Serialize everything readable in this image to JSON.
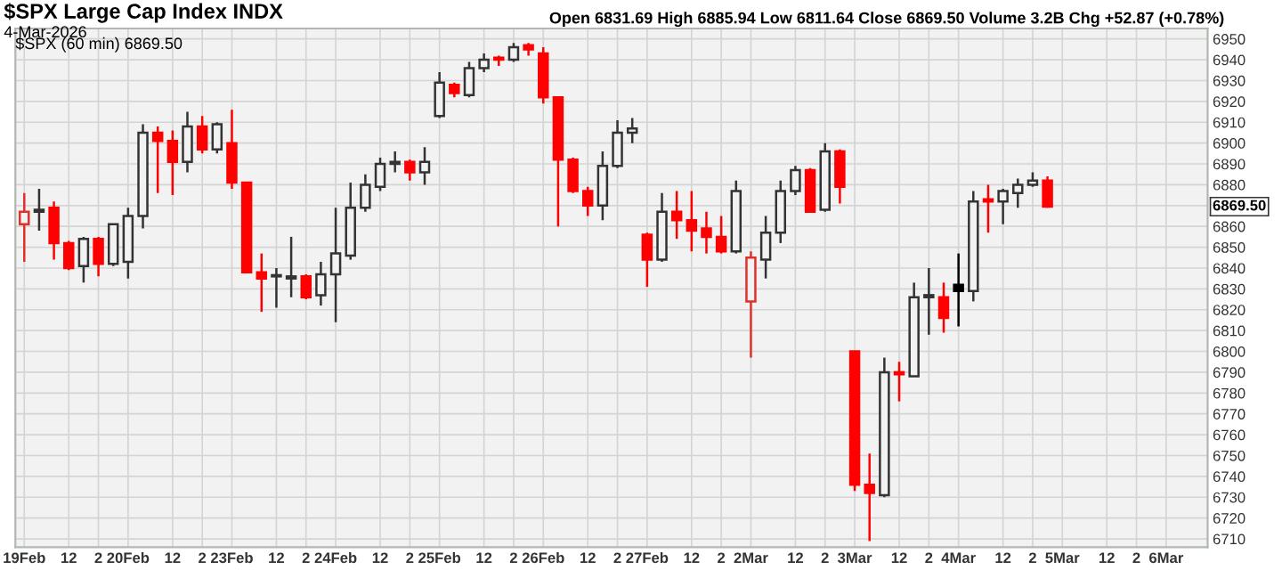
{
  "chart_data": {
    "type": "candlestick",
    "title": "$SPX Large Cap Index INDX",
    "subtitle": "4-Mar-2026",
    "annotations": [
      "Open 6831.69 High 6885.94 Low 6811.64 Close 6869.50 Volume 3.2B Chg +52.87 (+0.78%)",
      "$SPX (60 min) 6869.50",
      "6869.50"
    ],
    "categories": [
      "19Feb",
      null,
      null,
      "12",
      null,
      "2",
      null,
      "20Feb",
      null,
      null,
      "12",
      null,
      "2",
      null,
      "23Feb",
      null,
      null,
      "12",
      null,
      "2",
      null,
      "24Feb",
      null,
      null,
      "12",
      null,
      "2",
      null,
      "25Feb",
      null,
      null,
      "12",
      null,
      "2",
      null,
      "26Feb",
      null,
      null,
      "12",
      null,
      "2",
      null,
      "27Feb",
      null,
      null,
      "12",
      null,
      "2",
      null,
      "2Mar",
      null,
      null,
      "12",
      null,
      "2",
      null,
      "3Mar",
      null,
      null,
      "12",
      null,
      "2",
      null,
      "4Mar",
      null,
      null,
      "12",
      null,
      "2",
      null,
      "5Mar",
      null,
      null,
      "12",
      null,
      "2",
      null,
      "6Mar"
    ],
    "ohlc": [
      [
        6861,
        6876,
        6843,
        6867
      ],
      [
        6868,
        6878,
        6858,
        6867
      ],
      [
        6869,
        6872,
        6844,
        6852
      ],
      [
        6852,
        6853,
        6839,
        6840
      ],
      [
        6841,
        6855,
        6833,
        6854
      ],
      [
        6854,
        6855,
        6836,
        6842
      ],
      [
        6842,
        6861,
        6841,
        6861
      ],
      [
        6843,
        6869,
        6835,
        6865
      ],
      [
        6865,
        6909,
        6859,
        6905
      ],
      [
        6905,
        6908,
        6876,
        6901
      ],
      [
        6901,
        6906,
        6875,
        6891
      ],
      [
        6891,
        6915,
        6886,
        6908
      ],
      [
        6908,
        6913,
        6895,
        6897
      ],
      [
        6897,
        6910,
        6895,
        6909
      ],
      [
        6900,
        6916,
        6878,
        6881
      ],
      [
        6881,
        6881,
        6838,
        6838
      ],
      [
        6838,
        6847,
        6819,
        6835
      ],
      [
        6836,
        6840,
        6821,
        6836
      ],
      [
        6836,
        6855,
        6826,
        6835
      ],
      [
        6836,
        6837,
        6825,
        6826
      ],
      [
        6827,
        6843,
        6822,
        6837
      ],
      [
        6837,
        6869,
        6814,
        6847
      ],
      [
        6846,
        6881,
        6844,
        6869
      ],
      [
        6869,
        6885,
        6867,
        6880
      ],
      [
        6879,
        6893,
        6877,
        6890
      ],
      [
        6890,
        6896,
        6886,
        6891
      ],
      [
        6891,
        6892,
        6882,
        6886
      ],
      [
        6886,
        6898,
        6880,
        6891
      ],
      [
        6913,
        6934,
        6912,
        6929
      ],
      [
        6928,
        6929,
        6922,
        6924
      ],
      [
        6923,
        6939,
        6922,
        6936
      ],
      [
        6936,
        6943,
        6934,
        6940
      ],
      [
        6941,
        6942,
        6937,
        6940
      ],
      [
        6940,
        6948,
        6939,
        6946
      ],
      [
        6947,
        6948,
        6942,
        6945
      ],
      [
        6943,
        6946,
        6919,
        6922
      ],
      [
        6922,
        6922,
        6860,
        6892
      ],
      [
        6892,
        6893,
        6876,
        6877
      ],
      [
        6877,
        6879,
        6865,
        6870
      ],
      [
        6870,
        6896,
        6863,
        6889
      ],
      [
        6889,
        6911,
        6888,
        6905
      ],
      [
        6905,
        6912,
        6900,
        6907
      ],
      [
        6856,
        6857,
        6831,
        6844
      ],
      [
        6844,
        6876,
        6843,
        6867
      ],
      [
        6867,
        6877,
        6854,
        6863
      ],
      [
        6863,
        6877,
        6848,
        6858
      ],
      [
        6859,
        6867,
        6847,
        6855
      ],
      [
        6855,
        6865,
        6847,
        6848
      ],
      [
        6848,
        6882,
        6847,
        6877
      ],
      [
        6824,
        6848,
        6797,
        6845
      ],
      [
        6844,
        6865,
        6835,
        6857
      ],
      [
        6857,
        6882,
        6852,
        6877
      ],
      [
        6877,
        6889,
        6875,
        6887
      ],
      [
        6887,
        6888,
        6867,
        6867
      ],
      [
        6868,
        6900,
        6867,
        6896
      ],
      [
        6896,
        6897,
        6871,
        6879
      ],
      [
        6800,
        6800,
        6733,
        6736
      ],
      [
        6736,
        6751,
        6709,
        6732
      ],
      [
        6731,
        6797,
        6730,
        6790
      ],
      [
        6790,
        6795,
        6776,
        6789
      ],
      [
        6788,
        6833,
        6788,
        6826
      ],
      [
        6826,
        6840,
        6808,
        6827
      ],
      [
        6826,
        6833,
        6809,
        6816
      ],
      [
        6832,
        6847,
        6812,
        6829
      ],
      [
        6829,
        6877,
        6824,
        6872
      ],
      [
        6873,
        6880,
        6857,
        6872
      ],
      [
        6872,
        6878,
        6861,
        6877
      ],
      [
        6876,
        6883,
        6869,
        6880
      ],
      [
        6880,
        6886,
        6879,
        6882
      ],
      [
        6882,
        6884,
        6869,
        6869.5
      ],
      null,
      null,
      null,
      null,
      null,
      null,
      null,
      null
    ],
    "colors": [
      "#e0302a",
      "#333333",
      "#ff0000",
      "#ff0000",
      "#333333",
      "#ff0000",
      "#333333",
      "#333333",
      "#333333",
      "#ff0000",
      "#ff0000",
      "#333333",
      "#ff0000",
      "#333333",
      "#ff0000",
      "#ff0000",
      "#ff0000",
      "#333333",
      "#333333",
      "#ff0000",
      "#333333",
      "#333333",
      "#333333",
      "#333333",
      "#333333",
      "#333333",
      "#ff0000",
      "#333333",
      "#333333",
      "#ff0000",
      "#333333",
      "#333333",
      "#ff0000",
      "#333333",
      "#ff0000",
      "#ff0000",
      "#ff0000",
      "#ff0000",
      "#ff0000",
      "#333333",
      "#333333",
      "#333333",
      "#ff0000",
      "#333333",
      "#ff0000",
      "#ff0000",
      "#ff0000",
      "#ff0000",
      "#333333",
      "#e0302a",
      "#333333",
      "#333333",
      "#333333",
      "#ff0000",
      "#333333",
      "#ff0000",
      "#ff0000",
      "#ff0000",
      "#333333",
      "#ff0000",
      "#333333",
      "#333333",
      "#ff0000",
      "#000000",
      "#333333",
      "#ff0000",
      "#333333",
      "#333333",
      "#333333",
      "#ff0000",
      null,
      null,
      null,
      null,
      null,
      null,
      null,
      null
    ],
    "ylim": [
      6706,
      6955
    ],
    "yticks": [
      6710,
      6720,
      6730,
      6740,
      6750,
      6760,
      6770,
      6780,
      6790,
      6800,
      6810,
      6820,
      6830,
      6840,
      6850,
      6860,
      {
        "value": 6870,
        "label": null
      },
      6880,
      6890,
      6900,
      6910,
      6920,
      6930,
      6940,
      6950
    ],
    "grid": true
  }
}
